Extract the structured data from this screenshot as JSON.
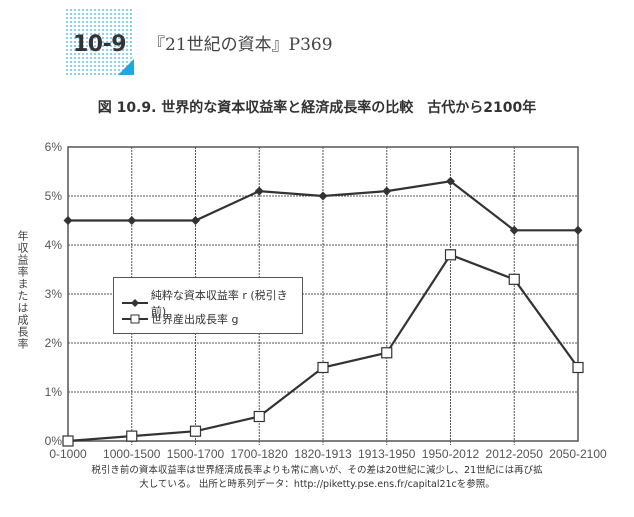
{
  "header": {
    "badge": "10-9",
    "reference": "『21世紀の資本』P369"
  },
  "figure": {
    "title": "図 10.9. 世界的な資本収益率と経済成長率の比較　古代から2100年",
    "caption_line1": "税引き前の資本収益率は世界経済成長率よりも常に高いが、その差は20世紀に減少し、21世紀には再び拡",
    "caption_line2": "大している。 出所と時系列データ：http://piketty.pse.ens.fr/capital21cを参照。"
  },
  "legend": {
    "r_label": "純粋な資本収益率 r (税引き前)",
    "g_label": "世界産出成長率 g"
  },
  "colors": {
    "line": "#333333",
    "grid": "#555555",
    "badge_accent": "#1ea7e0",
    "badge_dots": "#8fd0ee"
  },
  "chart_data": {
    "type": "line",
    "title": "図 10.9. 世界的な資本収益率と経済成長率の比較　古代から2100年",
    "xlabel": "",
    "ylabel": "年収益率または成長率",
    "categories": [
      "0-1000",
      "1000-1500",
      "1500-1700",
      "1700-1820",
      "1820-1913",
      "1913-1950",
      "1950-2012",
      "2012-2050",
      "2050-2100"
    ],
    "series": [
      {
        "name": "純粋な資本収益率 r (税引き前)",
        "marker": "filled-diamond",
        "values": [
          4.5,
          4.5,
          4.5,
          5.1,
          5.0,
          5.1,
          5.3,
          4.3,
          4.3
        ]
      },
      {
        "name": "世界産出成長率 g",
        "marker": "open-square",
        "values": [
          0.0,
          0.1,
          0.2,
          0.5,
          1.5,
          1.8,
          3.8,
          3.3,
          1.5
        ]
      }
    ],
    "yticks": [
      "0%",
      "1%",
      "2%",
      "3%",
      "4%",
      "5%",
      "6%"
    ],
    "ylim": [
      0,
      6
    ],
    "grid": true,
    "legend_position": "inside-left"
  }
}
